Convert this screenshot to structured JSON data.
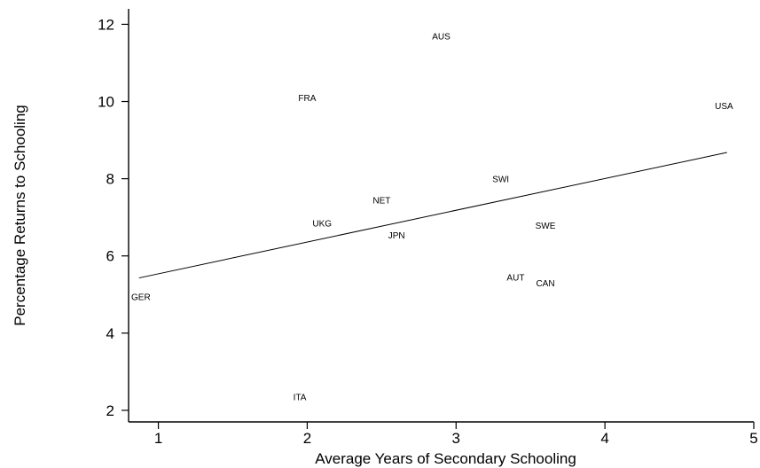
{
  "chart_data": {
    "type": "scatter",
    "xlabel": "Average Years of Secondary Schooling",
    "ylabel": "Percentage Returns to Schooling",
    "xlim": [
      0.8,
      5.0
    ],
    "ylim": [
      1.7,
      12.4
    ],
    "xticks": [
      1,
      2,
      3,
      4,
      5
    ],
    "yticks": [
      2,
      4,
      6,
      8,
      10,
      12
    ],
    "grid": false,
    "legend": "none",
    "points": [
      {
        "label": "AUS",
        "x": 2.9,
        "y": 11.7
      },
      {
        "label": "FRA",
        "x": 2.0,
        "y": 10.1
      },
      {
        "label": "USA",
        "x": 4.8,
        "y": 9.9
      },
      {
        "label": "SWI",
        "x": 3.3,
        "y": 8.0
      },
      {
        "label": "NET",
        "x": 2.5,
        "y": 7.45
      },
      {
        "label": "UKG",
        "x": 2.1,
        "y": 6.85
      },
      {
        "label": "SWE",
        "x": 3.6,
        "y": 6.8
      },
      {
        "label": "JPN",
        "x": 2.6,
        "y": 6.55
      },
      {
        "label": "AUT",
        "x": 3.4,
        "y": 5.45
      },
      {
        "label": "CAN",
        "x": 3.6,
        "y": 5.3
      },
      {
        "label": "GER",
        "x": 0.8,
        "y": 4.95
      },
      {
        "label": "ITA",
        "x": 1.95,
        "y": 2.35
      }
    ],
    "fit_line": {
      "x": [
        0.87,
        4.82
      ],
      "y": [
        5.43,
        8.68
      ]
    }
  }
}
